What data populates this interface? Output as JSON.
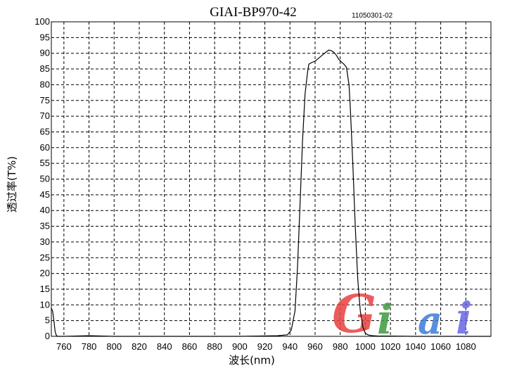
{
  "header": {
    "title": "GIAI-BP970-42",
    "code": "11050301-02"
  },
  "logo": {
    "text": "Giai",
    "colors": [
      "#e84040",
      "#3c9a3c",
      "#3c7ad6",
      "#6666e6"
    ]
  },
  "chart_data": {
    "type": "line",
    "title": "GIAI-BP970-42",
    "xlabel": "波长(nm)",
    "ylabel": "透过率(T%)",
    "xlim": [
      750,
      1100
    ],
    "ylim": [
      0,
      100
    ],
    "x_ticks": [
      760,
      780,
      800,
      820,
      840,
      860,
      880,
      900,
      920,
      940,
      960,
      980,
      1000,
      1020,
      1040,
      1060,
      1080
    ],
    "y_ticks": [
      0,
      5,
      10,
      15,
      20,
      25,
      30,
      35,
      40,
      45,
      50,
      55,
      60,
      65,
      70,
      75,
      80,
      85,
      90,
      95,
      100
    ],
    "grid": true,
    "series": [
      {
        "x": [
          750,
          751,
          752,
          753,
          754,
          755,
          757,
          760,
          780,
          800,
          850,
          900,
          930,
          938,
          941,
          944,
          946,
          948,
          950,
          952,
          954,
          955,
          957,
          960,
          963,
          966,
          969,
          971,
          973,
          975,
          977,
          979,
          981,
          983,
          985,
          987,
          988,
          990,
          992,
          994,
          996,
          998,
          1000,
          1002,
          1004,
          1006,
          1010,
          1020,
          1040,
          1060,
          1080,
          1100
        ],
        "y": [
          9,
          8,
          5,
          1.5,
          0.3,
          0,
          0,
          0,
          0.2,
          0,
          0,
          0,
          0.2,
          0.5,
          2,
          8,
          22,
          42,
          62,
          77,
          84,
          86.5,
          87,
          87.5,
          88.5,
          89.5,
          90.5,
          91,
          90.8,
          90.3,
          89.3,
          88,
          87.2,
          86.5,
          85.5,
          80,
          73,
          55,
          35,
          18,
          8,
          3,
          1,
          0.5,
          0.3,
          0.2,
          0.1,
          0.1,
          0,
          0,
          0,
          0
        ]
      }
    ]
  }
}
